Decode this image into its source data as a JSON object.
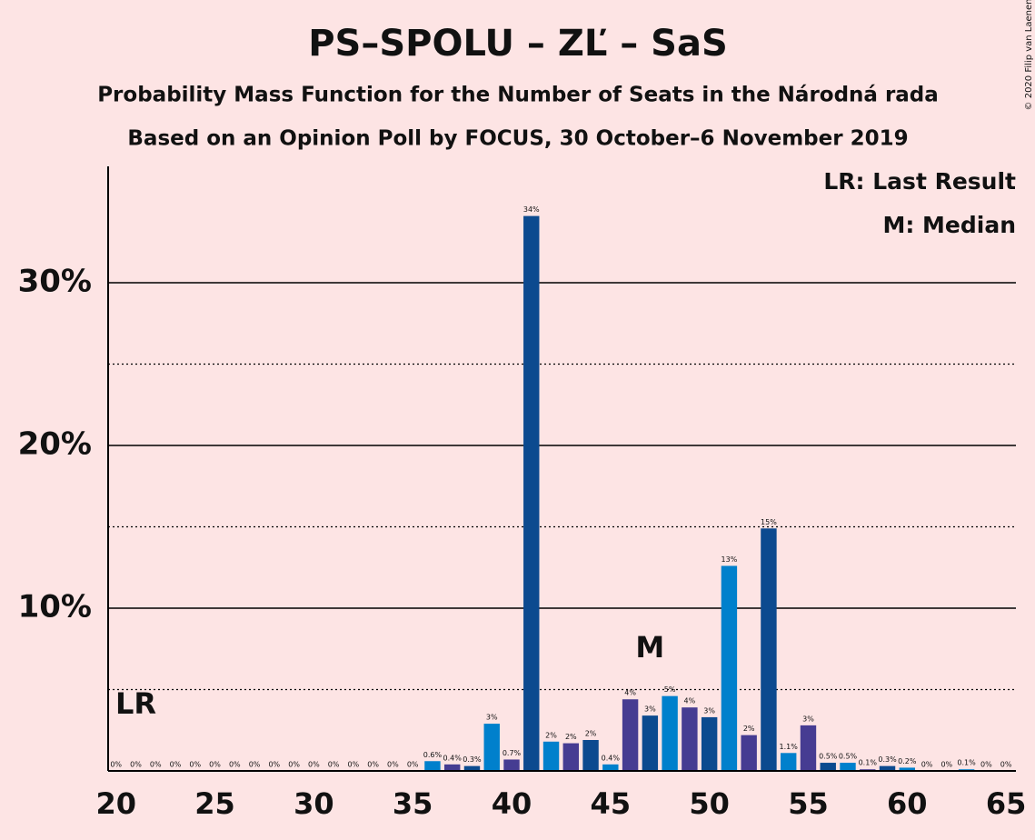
{
  "chart_data": {
    "type": "bar",
    "title": "PS–SPOLU – ZĽ – SaS",
    "subtitle": "Probability Mass Function for the Number of Seats in the Národná rada",
    "subtitle2": "Based on an Opinion Poll by FOCUS, 30 October–6 November 2019",
    "copyright": "© 2020 Filip van Laenen",
    "legend": [
      "LR: Last Result",
      "M: Median"
    ],
    "last_result": {
      "x": 21,
      "label": "LR"
    },
    "median": {
      "x": 47,
      "label": "M"
    },
    "x": [
      20,
      21,
      22,
      23,
      24,
      25,
      26,
      27,
      28,
      29,
      30,
      31,
      32,
      33,
      34,
      35,
      36,
      37,
      38,
      39,
      40,
      41,
      42,
      43,
      44,
      45,
      46,
      47,
      48,
      49,
      50,
      51,
      52,
      53,
      54,
      55,
      56,
      57,
      58,
      59,
      60,
      61,
      62,
      63,
      64,
      65
    ],
    "values": [
      0,
      0,
      0,
      0,
      0,
      0,
      0,
      0,
      0,
      0,
      0,
      0,
      0,
      0,
      0,
      0,
      0.6,
      0.4,
      0.3,
      2.9,
      0.7,
      34.1,
      1.8,
      1.7,
      1.9,
      0.4,
      4.4,
      3.4,
      4.6,
      3.9,
      3.3,
      12.6,
      2.2,
      14.9,
      1.1,
      2.8,
      0.5,
      0.5,
      0.1,
      0.3,
      0.2,
      0,
      0,
      0.1,
      0,
      0
    ],
    "value_labels": [
      "0%",
      "0%",
      "0%",
      "0%",
      "0%",
      "0%",
      "0%",
      "0%",
      "0%",
      "0%",
      "0%",
      "0%",
      "0%",
      "0%",
      "0%",
      "0%",
      "0.6%",
      "0.4%",
      "0.3%",
      "3%",
      "0.7%",
      "34%",
      "2%",
      "2%",
      "2%",
      "0.4%",
      "4%",
      "3%",
      "5%",
      "4%",
      "3%",
      "13%",
      "2%",
      "15%",
      "1.1%",
      "3%",
      "0.5%",
      "0.5%",
      "0.1%",
      "0.3%",
      "0.2%",
      "0%",
      "0%",
      "0.1%",
      "0%",
      "0%"
    ],
    "colors": [
      "#463c92",
      "#0c4a8f",
      "#0080cc"
    ],
    "xlim": [
      19.6,
      65.5
    ],
    "xticks": [
      20,
      25,
      30,
      35,
      40,
      45,
      50,
      55,
      60,
      65
    ],
    "ylim": [
      0,
      37.15
    ],
    "yticks": [
      {
        "value": 10,
        "label": "10%"
      },
      {
        "value": 20,
        "label": "20%"
      },
      {
        "value": 30,
        "label": "30%"
      }
    ],
    "minor_yticks": [
      5,
      15,
      25
    ],
    "grid": true
  }
}
